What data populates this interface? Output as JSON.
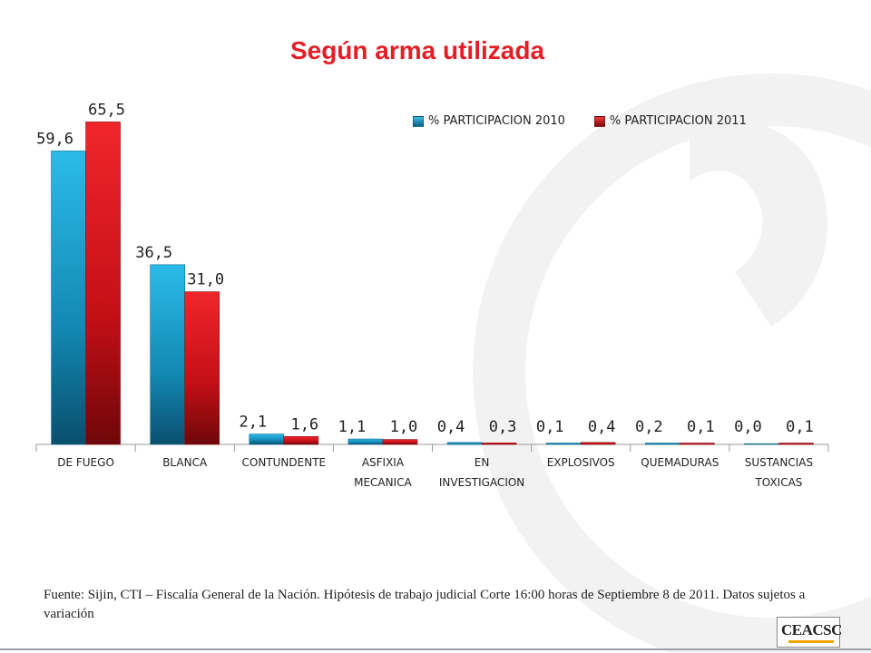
{
  "colors": {
    "accent_title": "#e41e26",
    "series_2010": "#1aa7d4",
    "series_2011": "#d9121b",
    "decoration": "#f1f1f1",
    "logo_accent": "#f5a300"
  },
  "chart_data": {
    "type": "bar",
    "title": "Según arma utilizada",
    "categories": [
      [
        "DE FUEGO"
      ],
      [
        "BLANCA"
      ],
      [
        "CONTUNDENTE"
      ],
      [
        "ASFIXIA",
        "MECANICA"
      ],
      [
        "EN",
        "INVESTIGACION"
      ],
      [
        "EXPLOSIVOS"
      ],
      [
        "QUEMADURAS"
      ],
      [
        "SUSTANCIAS",
        "TOXICAS"
      ]
    ],
    "series": [
      {
        "name": "% PARTICIPACION 2010",
        "values": [
          59.6,
          36.5,
          2.1,
          1.1,
          0.4,
          0.1,
          0.2,
          0.0
        ],
        "labels": [
          "59,6",
          "36,5",
          "2,1",
          "1,1",
          "0,4",
          "0,1",
          "0,2",
          "0,0"
        ]
      },
      {
        "name": "% PARTICIPACION 2011",
        "values": [
          65.5,
          31.0,
          1.6,
          1.0,
          0.3,
          0.4,
          0.1,
          0.1
        ],
        "labels": [
          "65,5",
          "31,0",
          "1,6",
          "1,0",
          "0,3",
          "0,4",
          "0,1",
          "0,1"
        ]
      }
    ],
    "xlabel": "",
    "ylabel": "",
    "ylim": [
      0,
      70
    ],
    "grid": false,
    "legend_position": "top-right"
  },
  "source_note": "Fuente: Sijin,  CTI – Fiscalía General de la Nación.  Hipótesis de trabajo judicial  Corte 16:00 horas de  Septiembre 8 de  2011.  Datos sujetos a variación",
  "logo": {
    "icon": "ceacsc-logo",
    "text": "CEACSC"
  }
}
